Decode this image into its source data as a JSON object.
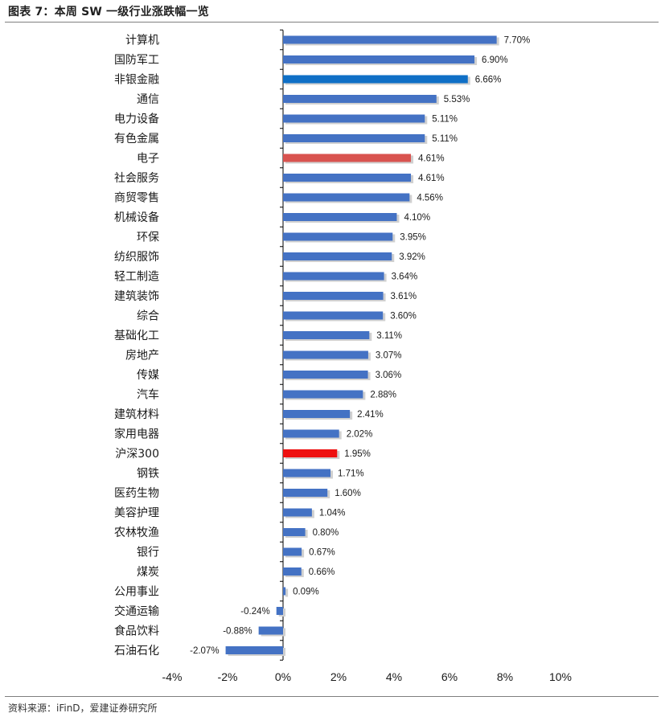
{
  "header": {
    "title": "图表 7：本周 SW 一级行业涨跌幅一览"
  },
  "footer": {
    "source": "资料来源：iFinD，爱建证券研究所"
  },
  "colors": {
    "default_bar": "#4472c4",
    "highlight_blue": "#0f6fc6",
    "highlight_salmon": "#d9534f",
    "highlight_red": "#ee1111",
    "shadow": "#d0d0d0"
  },
  "chart_data": {
    "type": "bar",
    "orientation": "horizontal",
    "title": "本周 SW 一级行业涨跌幅一览",
    "xlabel": "",
    "ylabel": "",
    "xlim": [
      -4,
      10
    ],
    "x_ticks": [
      -4,
      -2,
      0,
      2,
      4,
      6,
      8,
      10
    ],
    "x_tick_labels": [
      "-4%",
      "-2%",
      "0%",
      "2%",
      "4%",
      "6%",
      "8%",
      "10%"
    ],
    "categories": [
      "计算机",
      "国防军工",
      "非银金融",
      "通信",
      "电力设备",
      "有色金属",
      "电子",
      "社会服务",
      "商贸零售",
      "机械设备",
      "环保",
      "纺织服饰",
      "轻工制造",
      "建筑装饰",
      "综合",
      "基础化工",
      "房地产",
      "传媒",
      "汽车",
      "建筑材料",
      "家用电器",
      "沪深300",
      "钢铁",
      "医药生物",
      "美容护理",
      "农林牧渔",
      "银行",
      "煤炭",
      "公用事业",
      "交通运输",
      "食品饮料",
      "石油石化"
    ],
    "values": [
      7.7,
      6.9,
      6.66,
      5.53,
      5.11,
      5.11,
      4.61,
      4.61,
      4.56,
      4.1,
      3.95,
      3.92,
      3.64,
      3.61,
      3.6,
      3.11,
      3.07,
      3.06,
      2.88,
      2.41,
      2.02,
      1.95,
      1.71,
      1.6,
      1.04,
      0.8,
      0.67,
      0.66,
      0.09,
      -0.24,
      -0.88,
      -2.07
    ],
    "value_labels": [
      "7.70%",
      "6.90%",
      "6.66%",
      "5.53%",
      "5.11%",
      "5.11%",
      "4.61%",
      "4.61%",
      "4.56%",
      "4.10%",
      "3.95%",
      "3.92%",
      "3.64%",
      "3.61%",
      "3.60%",
      "3.11%",
      "3.07%",
      "3.06%",
      "2.88%",
      "2.41%",
      "2.02%",
      "1.95%",
      "1.71%",
      "1.60%",
      "1.04%",
      "0.80%",
      "0.67%",
      "0.66%",
      "0.09%",
      "-0.24%",
      "-0.88%",
      "-2.07%"
    ],
    "highlights": {
      "非银金融": "highlight_blue",
      "电子": "highlight_salmon",
      "沪深300": "highlight_red"
    },
    "grid": false,
    "legend": "none"
  }
}
